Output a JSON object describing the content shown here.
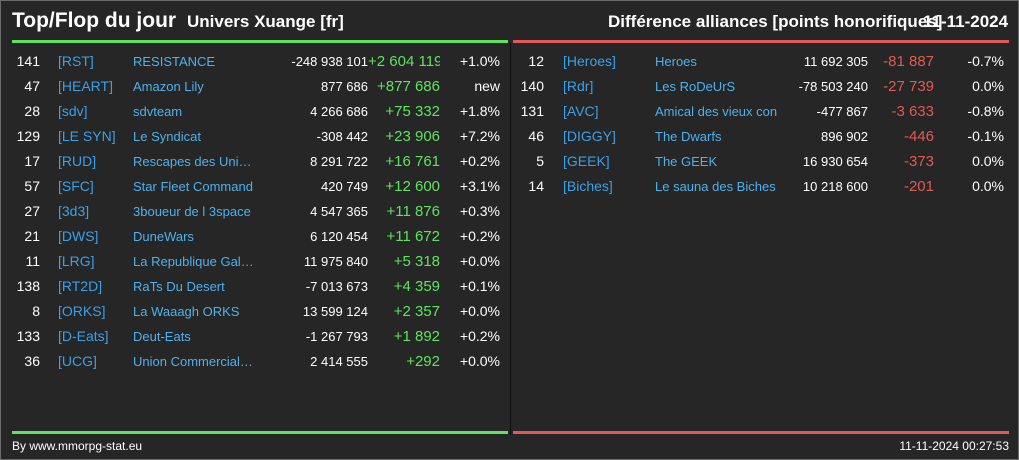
{
  "header": {
    "title": "Top/Flop du jour",
    "universe": "Univers Xuange [fr]",
    "right_title": "Différence alliances [points honorifiques]",
    "date": "11-11-2024"
  },
  "colors": {
    "top_accent": "#5fe35f",
    "flop_accent": "#e05a55",
    "tag_color": "#3aa0e8",
    "background": "#262626"
  },
  "top": [
    {
      "rank": "141",
      "tag": "[RST]",
      "name": "RESISTANCE",
      "points": "-248 938 101",
      "delta": "+2 604 119",
      "pct": "+1.0%"
    },
    {
      "rank": "47",
      "tag": "[HEART]",
      "name": "Amazon Lily",
      "points": "877 686",
      "delta": "+877 686",
      "pct": "new"
    },
    {
      "rank": "28",
      "tag": "[sdv]",
      "name": "sdvteam",
      "points": "4 266 686",
      "delta": "+75 332",
      "pct": "+1.8%"
    },
    {
      "rank": "129",
      "tag": "[LE SYN]",
      "name": "Le Syndicat",
      "points": "-308 442",
      "delta": "+23 906",
      "pct": "+7.2%"
    },
    {
      "rank": "17",
      "tag": "[RUD]",
      "name": "Rescapes des Univ...",
      "points": "8 291 722",
      "delta": "+16 761",
      "pct": "+0.2%"
    },
    {
      "rank": "57",
      "tag": "[SFC]",
      "name": "Star Fleet Command",
      "points": "420 749",
      "delta": "+12 600",
      "pct": "+3.1%"
    },
    {
      "rank": "27",
      "tag": "[3d3]",
      "name": "3boueur de l 3space",
      "points": "4 547 365",
      "delta": "+11 876",
      "pct": "+0.3%"
    },
    {
      "rank": "21",
      "tag": "[DWS]",
      "name": "DuneWars",
      "points": "6 120 454",
      "delta": "+11 672",
      "pct": "+0.2%"
    },
    {
      "rank": "11",
      "tag": "[LRG]",
      "name": "La Republique Gala...",
      "points": "11 975 840",
      "delta": "+5 318",
      "pct": "+0.0%"
    },
    {
      "rank": "138",
      "tag": "[RT2D]",
      "name": "RaTs Du Desert",
      "points": "-7 013 673",
      "delta": "+4 359",
      "pct": "+0.1%"
    },
    {
      "rank": "8",
      "tag": "[ORKS]",
      "name": "La Waaagh ORKS",
      "points": "13 599 124",
      "delta": "+2 357",
      "pct": "+0.0%"
    },
    {
      "rank": "133",
      "tag": "[D-Eats]",
      "name": "Deut-Eats",
      "points": "-1 267 793",
      "delta": "+1 892",
      "pct": "+0.2%"
    },
    {
      "rank": "36",
      "tag": "[UCG]",
      "name": "Union Commerciale...",
      "points": "2 414 555",
      "delta": "+292",
      "pct": "+0.0%"
    }
  ],
  "flop": [
    {
      "rank": "12",
      "tag": "[Heroes]",
      "name": "Heroes",
      "points": "11 692 305",
      "delta": "-81 887",
      "pct": "-0.7%"
    },
    {
      "rank": "140",
      "tag": "[Rdr]",
      "name": "Les RoDeUrS",
      "points": "-78 503 240",
      "delta": "-27 739",
      "pct": "0.0%"
    },
    {
      "rank": "131",
      "tag": "[AVC]",
      "name": "Amical des vieux con",
      "points": "-477 867",
      "delta": "-3 633",
      "pct": "-0.8%"
    },
    {
      "rank": "46",
      "tag": "[DIGGY]",
      "name": "The Dwarfs",
      "points": "896 902",
      "delta": "-446",
      "pct": "-0.1%"
    },
    {
      "rank": "5",
      "tag": "[GEEK]",
      "name": "The GEEK",
      "points": "16 930 654",
      "delta": "-373",
      "pct": "0.0%"
    },
    {
      "rank": "14",
      "tag": "[Biches]",
      "name": "Le sauna des Biches",
      "points": "10 218 600",
      "delta": "-201",
      "pct": "0.0%"
    }
  ],
  "footer": {
    "source": "By www.mmorpg-stat.eu",
    "timestamp": "11-11-2024 00:27:53"
  }
}
